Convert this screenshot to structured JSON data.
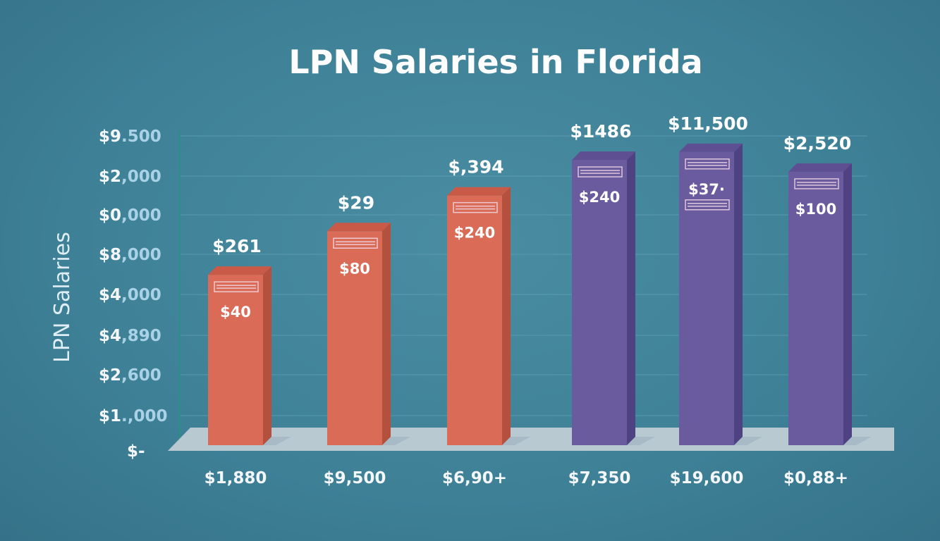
{
  "chart_data": {
    "type": "bar",
    "title": "LPN Salaries in Florida",
    "ylabel": "LPN Salaries",
    "xlabel": "",
    "y_ticks": [
      {
        "main": "$9",
        "rest": ".500"
      },
      {
        "main": "$2",
        "rest": ",000"
      },
      {
        "main": "$0",
        "rest": ",000"
      },
      {
        "main": "$8",
        "rest": ",000"
      },
      {
        "main": "$4",
        "rest": ",000"
      },
      {
        "main": "$4",
        "rest": ",890"
      },
      {
        "main": "$2",
        "rest": ",600"
      },
      {
        "main": "$1",
        "rest": ".,000"
      },
      {
        "main": "$-",
        "rest": ""
      }
    ],
    "categories": [
      "$1,880",
      "$9,500",
      "$6,90+",
      "$7,350",
      "$19,600",
      "$0,88+"
    ],
    "top_labels": [
      "$261",
      "$29",
      "$,394",
      "$1486",
      "$11,500",
      "$2,520"
    ],
    "inner_labels": [
      "$40",
      "$80",
      "$240",
      "$240",
      "$37·",
      "$100"
    ],
    "values": [
      4.3,
      5.4,
      6.3,
      7.2,
      7.4,
      6.9
    ],
    "ylim": [
      0,
      8
    ],
    "grid": true,
    "colors": {
      "bar_orange": "#d96b57",
      "bar_orange_side": "#b4503e",
      "bar_orange_top": "#c85a47",
      "bar_purple": "#6a5a9e",
      "bar_purple_side": "#4f4282",
      "bar_purple_top": "#5e4f93",
      "platform": "#b8c9d2",
      "axis": "#2d8f84"
    },
    "bar_colors": [
      "orange",
      "orange",
      "orange",
      "purple",
      "purple",
      "purple"
    ]
  }
}
